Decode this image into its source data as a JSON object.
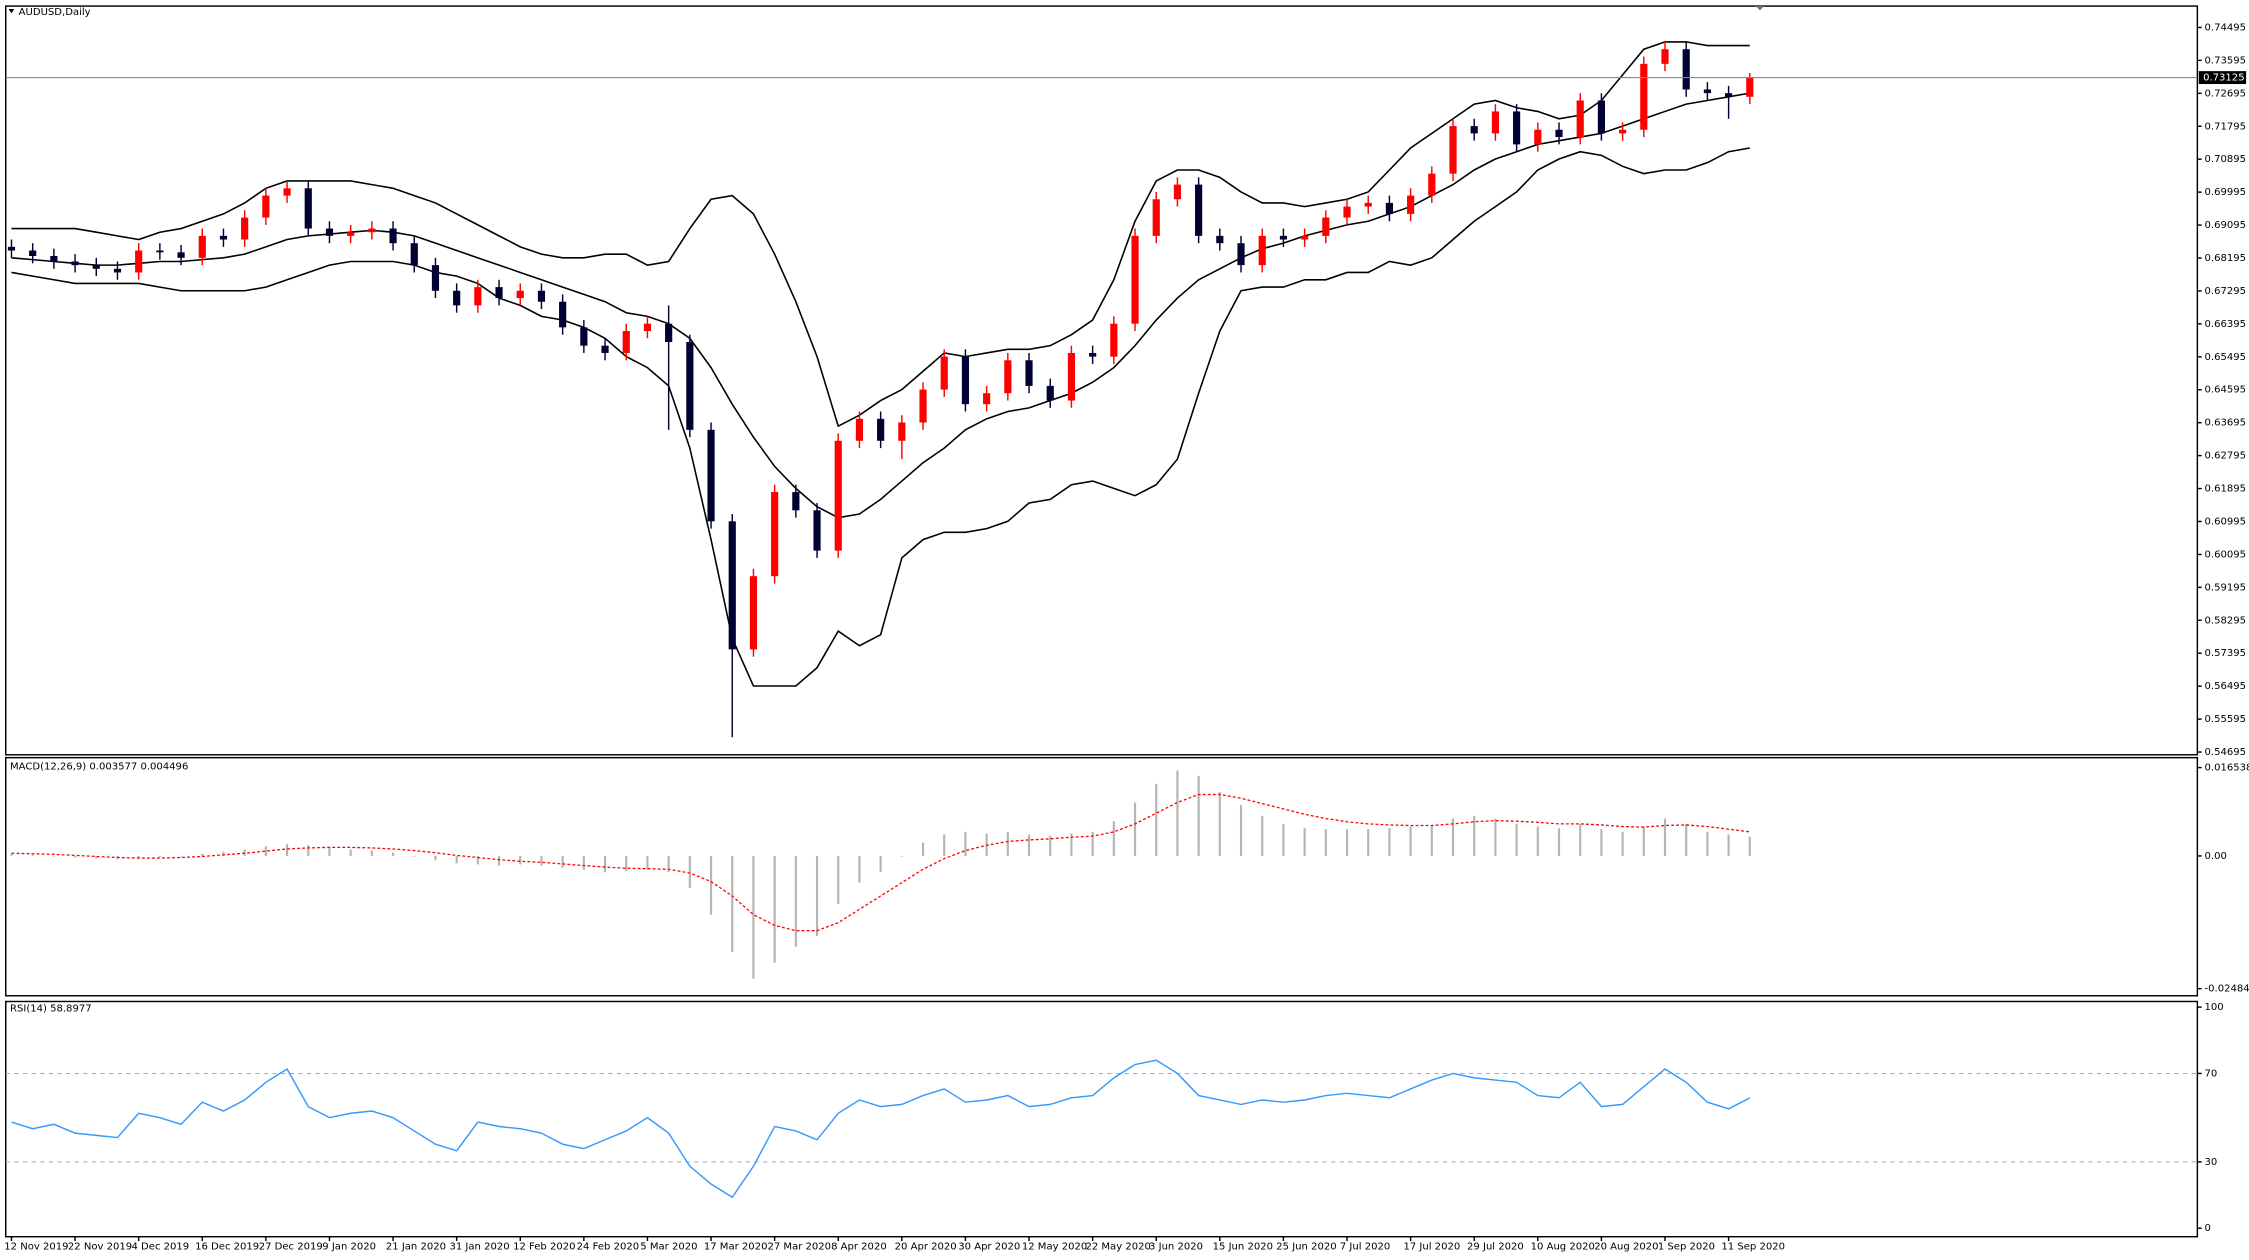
{
  "chart_data": [
    {
      "type": "candlestick",
      "title": "AUDUSD,Daily",
      "categories": [
        "12 Nov 2019",
        null,
        null,
        "22 Nov 2019",
        null,
        null,
        "4 Dec 2019",
        null,
        null,
        "16 Dec 2019",
        null,
        null,
        "27 Dec 2019",
        null,
        null,
        "9 Jan 2020",
        null,
        null,
        "21 Jan 2020",
        null,
        null,
        "31 Jan 2020",
        null,
        null,
        "12 Feb 2020",
        null,
        null,
        "24 Feb 2020",
        null,
        null,
        "5 Mar 2020",
        null,
        null,
        "17 Mar 2020",
        null,
        null,
        "27 Mar 2020",
        null,
        null,
        "8 Apr 2020",
        null,
        null,
        "20 Apr 2020",
        null,
        null,
        "30 Apr 2020",
        null,
        null,
        "12 May 2020",
        null,
        null,
        "22 May 2020",
        null,
        null,
        "3 Jun 2020",
        null,
        null,
        "15 Jun 2020",
        null,
        null,
        "25 Jun 2020",
        null,
        null,
        "7 Jul 2020",
        null,
        null,
        "17 Jul 2020",
        null,
        null,
        "29 Jul 2020",
        null,
        null,
        "10 Aug 2020",
        null,
        null,
        "20 Aug 2020",
        null,
        null,
        "1 Sep 2020",
        null,
        null,
        "11 Sep 2020",
        null
      ],
      "candles": [
        [
          0.685,
          0.687,
          0.682,
          0.684
        ],
        [
          0.684,
          0.686,
          0.6805,
          0.6825
        ],
        [
          0.6825,
          0.6845,
          0.679,
          0.681
        ],
        [
          0.681,
          0.683,
          0.678,
          0.68
        ],
        [
          0.68,
          0.682,
          0.677,
          0.679
        ],
        [
          0.679,
          0.681,
          0.676,
          0.678
        ],
        [
          0.678,
          0.686,
          0.676,
          0.684
        ],
        [
          0.684,
          0.686,
          0.6815,
          0.6835
        ],
        [
          0.6835,
          0.6855,
          0.68,
          0.682
        ],
        [
          0.682,
          0.69,
          0.68,
          0.688
        ],
        [
          0.688,
          0.69,
          0.685,
          0.687
        ],
        [
          0.687,
          0.695,
          0.685,
          0.693
        ],
        [
          0.693,
          0.701,
          0.691,
          0.699
        ],
        [
          0.699,
          0.703,
          0.697,
          0.701
        ],
        [
          0.701,
          0.703,
          0.688,
          0.69
        ],
        [
          0.69,
          0.692,
          0.686,
          0.688
        ],
        [
          0.688,
          0.691,
          0.686,
          0.689
        ],
        [
          0.689,
          0.692,
          0.687,
          0.69
        ],
        [
          0.69,
          0.692,
          0.684,
          0.686
        ],
        [
          0.686,
          0.688,
          0.678,
          0.68
        ],
        [
          0.68,
          0.682,
          0.671,
          0.673
        ],
        [
          0.673,
          0.675,
          0.667,
          0.669
        ],
        [
          0.669,
          0.676,
          0.667,
          0.674
        ],
        [
          0.674,
          0.676,
          0.669,
          0.671
        ],
        [
          0.671,
          0.675,
          0.669,
          0.673
        ],
        [
          0.673,
          0.675,
          0.668,
          0.67
        ],
        [
          0.67,
          0.672,
          0.661,
          0.663
        ],
        [
          0.663,
          0.665,
          0.656,
          0.658
        ],
        [
          0.658,
          0.66,
          0.654,
          0.656
        ],
        [
          0.656,
          0.664,
          0.654,
          0.662
        ],
        [
          0.662,
          0.666,
          0.66,
          0.664
        ],
        [
          0.664,
          0.669,
          0.635,
          0.659
        ],
        [
          0.659,
          0.661,
          0.633,
          0.635
        ],
        [
          0.635,
          0.637,
          0.608,
          0.61
        ],
        [
          0.61,
          0.612,
          0.551,
          0.575
        ],
        [
          0.575,
          0.597,
          0.573,
          0.595
        ],
        [
          0.595,
          0.62,
          0.593,
          0.618
        ],
        [
          0.618,
          0.62,
          0.611,
          0.613
        ],
        [
          0.613,
          0.615,
          0.6,
          0.602
        ],
        [
          0.602,
          0.634,
          0.6,
          0.632
        ],
        [
          0.632,
          0.64,
          0.63,
          0.638
        ],
        [
          0.638,
          0.64,
          0.63,
          0.632
        ],
        [
          0.632,
          0.639,
          0.627,
          0.637
        ],
        [
          0.637,
          0.648,
          0.635,
          0.646
        ],
        [
          0.646,
          0.657,
          0.644,
          0.655
        ],
        [
          0.655,
          0.657,
          0.64,
          0.642
        ],
        [
          0.642,
          0.647,
          0.64,
          0.645
        ],
        [
          0.645,
          0.656,
          0.643,
          0.654
        ],
        [
          0.654,
          0.656,
          0.645,
          0.647
        ],
        [
          0.647,
          0.649,
          0.641,
          0.643
        ],
        [
          0.643,
          0.658,
          0.641,
          0.656
        ],
        [
          0.656,
          0.658,
          0.653,
          0.655
        ],
        [
          0.655,
          0.666,
          0.653,
          0.664
        ],
        [
          0.664,
          0.69,
          0.662,
          0.688
        ],
        [
          0.688,
          0.7,
          0.686,
          0.698
        ],
        [
          0.698,
          0.704,
          0.696,
          0.702
        ],
        [
          0.702,
          0.704,
          0.686,
          0.688
        ],
        [
          0.688,
          0.69,
          0.684,
          0.686
        ],
        [
          0.686,
          0.688,
          0.678,
          0.68
        ],
        [
          0.68,
          0.69,
          0.678,
          0.688
        ],
        [
          0.688,
          0.69,
          0.685,
          0.687
        ],
        [
          0.687,
          0.69,
          0.685,
          0.688
        ],
        [
          0.688,
          0.695,
          0.686,
          0.693
        ],
        [
          0.693,
          0.698,
          0.691,
          0.696
        ],
        [
          0.696,
          0.699,
          0.694,
          0.697
        ],
        [
          0.697,
          0.699,
          0.692,
          0.694
        ],
        [
          0.694,
          0.701,
          0.692,
          0.699
        ],
        [
          0.699,
          0.707,
          0.697,
          0.705
        ],
        [
          0.705,
          0.72,
          0.703,
          0.718
        ],
        [
          0.718,
          0.72,
          0.714,
          0.716
        ],
        [
          0.716,
          0.724,
          0.714,
          0.722
        ],
        [
          0.722,
          0.724,
          0.711,
          0.713
        ],
        [
          0.713,
          0.719,
          0.711,
          0.717
        ],
        [
          0.717,
          0.719,
          0.713,
          0.715
        ],
        [
          0.715,
          0.727,
          0.713,
          0.725
        ],
        [
          0.725,
          0.727,
          0.714,
          0.716
        ],
        [
          0.716,
          0.719,
          0.714,
          0.717
        ],
        [
          0.717,
          0.737,
          0.715,
          0.735
        ],
        [
          0.735,
          0.7413,
          0.733,
          0.739
        ],
        [
          0.739,
          0.741,
          0.726,
          0.728
        ],
        [
          0.728,
          0.73,
          0.725,
          0.727
        ],
        [
          0.727,
          0.729,
          0.72,
          0.726
        ],
        [
          0.726,
          0.7325,
          0.724,
          0.7312
        ]
      ],
      "up_color": "#ff0000",
      "down_color": "#000033",
      "series": [
        {
          "color": "#000000",
          "values": [
            0.69,
            0.69,
            0.69,
            0.69,
            0.689,
            0.688,
            0.687,
            0.689,
            0.69,
            0.692,
            0.694,
            0.697,
            0.701,
            0.703,
            0.703,
            0.703,
            0.703,
            0.702,
            0.701,
            0.699,
            0.697,
            0.694,
            0.691,
            0.688,
            0.685,
            0.683,
            0.682,
            0.682,
            0.683,
            0.683,
            0.68,
            0.681,
            0.69,
            0.698,
            0.699,
            0.694,
            0.683,
            0.67,
            0.655,
            0.636,
            0.639,
            0.643,
            0.646,
            0.651,
            0.656,
            0.655,
            0.656,
            0.657,
            0.657,
            0.658,
            0.661,
            0.665,
            0.676,
            0.692,
            0.703,
            0.706,
            0.706,
            0.704,
            0.7,
            0.697,
            0.697,
            0.696,
            0.697,
            0.698,
            0.7,
            0.706,
            0.712,
            0.716,
            0.72,
            0.724,
            0.725,
            0.723,
            0.722,
            0.72,
            0.721,
            0.725,
            0.732,
            0.739,
            0.741,
            0.741,
            0.74,
            0.74,
            0.74
          ]
        },
        {
          "color": "#000000",
          "values": [
            0.682,
            0.6815,
            0.681,
            0.6805,
            0.68,
            0.68,
            0.6805,
            0.681,
            0.681,
            0.6815,
            0.682,
            0.683,
            0.685,
            0.687,
            0.688,
            0.6885,
            0.689,
            0.6895,
            0.689,
            0.688,
            0.686,
            0.684,
            0.682,
            0.68,
            0.678,
            0.676,
            0.674,
            0.672,
            0.67,
            0.667,
            0.666,
            0.664,
            0.66,
            0.652,
            0.642,
            0.633,
            0.625,
            0.619,
            0.614,
            0.611,
            0.612,
            0.616,
            0.621,
            0.626,
            0.63,
            0.635,
            0.638,
            0.64,
            0.641,
            0.643,
            0.645,
            0.648,
            0.652,
            0.658,
            0.665,
            0.671,
            0.676,
            0.679,
            0.682,
            0.6845,
            0.686,
            0.688,
            0.6895,
            0.691,
            0.692,
            0.694,
            0.696,
            0.699,
            0.702,
            0.706,
            0.709,
            0.711,
            0.713,
            0.714,
            0.715,
            0.716,
            0.718,
            0.72,
            0.722,
            0.724,
            0.725,
            0.726,
            0.727
          ]
        },
        {
          "color": "#000000",
          "values": [
            0.678,
            0.677,
            0.676,
            0.675,
            0.675,
            0.675,
            0.675,
            0.674,
            0.673,
            0.673,
            0.673,
            0.673,
            0.674,
            0.676,
            0.678,
            0.68,
            0.681,
            0.681,
            0.681,
            0.68,
            0.678,
            0.677,
            0.675,
            0.671,
            0.669,
            0.666,
            0.665,
            0.663,
            0.66,
            0.655,
            0.652,
            0.647,
            0.63,
            0.605,
            0.578,
            0.565,
            0.565,
            0.565,
            0.57,
            0.58,
            0.576,
            0.579,
            0.6,
            0.605,
            0.607,
            0.607,
            0.608,
            0.61,
            0.615,
            0.616,
            0.62,
            0.621,
            0.619,
            0.617,
            0.62,
            0.627,
            0.645,
            0.662,
            0.673,
            0.674,
            0.674,
            0.676,
            0.676,
            0.678,
            0.678,
            0.681,
            0.68,
            0.682,
            0.687,
            0.692,
            0.696,
            0.7,
            0.706,
            0.709,
            0.711,
            0.71,
            0.707,
            0.705,
            0.706,
            0.706,
            0.708,
            0.711,
            0.712
          ]
        }
      ],
      "last_price": 0.73125,
      "ylim": [
        0.5462,
        0.7504
      ],
      "yticks": [
        0.74495,
        0.73595,
        0.72695,
        0.71795,
        0.70895,
        0.69995,
        0.69095,
        0.68195,
        0.67295,
        0.66395,
        0.65495,
        0.64595,
        0.63695,
        0.62795,
        0.61895,
        0.60995,
        0.60095,
        0.59195,
        0.58295,
        0.57395,
        0.56495,
        0.55595,
        0.54695
      ]
    },
    {
      "type": "macd",
      "title": "MACD(12,26,9) 0.003577 0.004496",
      "histogram": {
        "color": "#b4b4b4",
        "values": [
          0.0004,
          0.0002,
          0,
          -0.0003,
          -0.0005,
          -0.0006,
          -0.0004,
          -0.0002,
          0,
          0.0004,
          0.0008,
          0.0012,
          0.0018,
          0.0022,
          0.002,
          0.0016,
          0.0012,
          0.001,
          0.0006,
          0,
          -0.0008,
          -0.0014,
          -0.0016,
          -0.0018,
          -0.0016,
          -0.0018,
          -0.0022,
          -0.0026,
          -0.003,
          -0.0028,
          -0.0026,
          -0.003,
          -0.006,
          -0.011,
          -0.018,
          -0.023,
          -0.02,
          -0.017,
          -0.015,
          -0.009,
          -0.005,
          -0.003,
          0,
          0.0025,
          0.004,
          0.0045,
          0.0042,
          0.0045,
          0.004,
          0.0038,
          0.0042,
          0.0045,
          0.0065,
          0.01,
          0.0135,
          0.016,
          0.015,
          0.012,
          0.0095,
          0.0075,
          0.006,
          0.0052,
          0.005,
          0.005,
          0.005,
          0.0052,
          0.0055,
          0.0058,
          0.007,
          0.0075,
          0.007,
          0.006,
          0.0055,
          0.0052,
          0.006,
          0.005,
          0.0045,
          0.0055,
          0.007,
          0.006,
          0.0045,
          0.004,
          0.0036
        ]
      },
      "signal": {
        "color": "#ff0000",
        "values": [
          0.0005,
          0.0004,
          0.0003,
          0.0001,
          -0.0001,
          -0.0003,
          -0.0004,
          -0.0004,
          -0.0003,
          -0.0001,
          0.0002,
          0.0005,
          0.0009,
          0.0013,
          0.0015,
          0.0016,
          0.0016,
          0.0015,
          0.0013,
          0.001,
          0.0006,
          0.0001,
          -0.0003,
          -0.0007,
          -0.001,
          -0.0012,
          -0.0015,
          -0.0018,
          -0.0021,
          -0.0023,
          -0.0024,
          -0.0025,
          -0.0032,
          -0.0048,
          -0.0075,
          -0.011,
          -0.013,
          -0.014,
          -0.014,
          -0.0125,
          -0.01,
          -0.0075,
          -0.005,
          -0.0025,
          -0.0005,
          0.001,
          0.002,
          0.0027,
          0.003,
          0.0032,
          0.0035,
          0.0037,
          0.0045,
          0.006,
          0.008,
          0.01,
          0.0115,
          0.0115,
          0.0108,
          0.0098,
          0.0088,
          0.0078,
          0.007,
          0.0064,
          0.006,
          0.0058,
          0.0057,
          0.0057,
          0.006,
          0.0064,
          0.0066,
          0.0065,
          0.0063,
          0.006,
          0.006,
          0.0058,
          0.0055,
          0.0054,
          0.0057,
          0.0058,
          0.0055,
          0.005,
          0.0045
        ]
      },
      "ylim": [
        -0.02591,
        0.01813
      ],
      "yticks": [
        0.016538,
        {
          "value": 0,
          "label": "0.00"
        },
        -0.024849
      ]
    },
    {
      "type": "line",
      "title": "RSI(14) 58.8977",
      "series": [
        {
          "color": "#3399ff",
          "values": [
            48,
            45,
            47,
            43,
            42,
            41,
            52,
            50,
            47,
            57,
            53,
            58,
            66,
            72,
            55,
            50,
            52,
            53,
            50,
            44,
            38,
            35,
            48,
            46,
            45,
            43,
            38,
            36,
            40,
            44,
            50,
            43,
            28,
            20,
            14,
            28,
            46,
            44,
            40,
            52,
            58,
            55,
            56,
            60,
            63,
            57,
            58,
            60,
            55,
            56,
            59,
            60,
            68,
            74,
            76,
            70,
            60,
            58,
            56,
            58,
            57,
            58,
            60,
            61,
            60,
            59,
            63,
            67,
            70,
            68,
            67,
            66,
            60,
            59,
            66,
            55,
            56,
            64,
            72,
            66,
            57,
            54,
            58.9
          ]
        }
      ],
      "levels": [
        70,
        30
      ],
      "ylim": [
        -3.2,
        101.9
      ],
      "yticks": [
        100,
        70,
        30,
        0
      ]
    }
  ]
}
